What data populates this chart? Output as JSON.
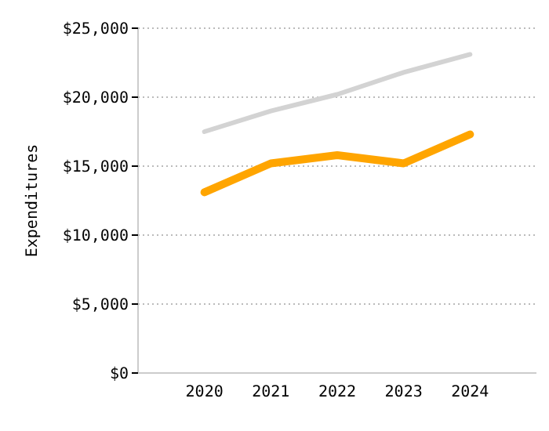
{
  "chart_data": {
    "type": "line",
    "ylabel": "Expenditures",
    "categories": [
      "2020",
      "2021",
      "2022",
      "2023",
      "2024"
    ],
    "series": [
      {
        "color": "#d3d3d3",
        "values": [
          17500,
          19000,
          20200,
          21800,
          23100
        ]
      },
      {
        "color": "#ffa500",
        "values": [
          13100,
          15200,
          15800,
          15200,
          17300
        ]
      }
    ],
    "ylim": [
      0,
      25000
    ],
    "yticks": [
      {
        "value": 0,
        "label": "$0"
      },
      {
        "value": 5000,
        "label": "$5,000"
      },
      {
        "value": 10000,
        "label": "$10,000"
      },
      {
        "value": 15000,
        "label": "$15,000"
      },
      {
        "value": 20000,
        "label": "$20,000"
      },
      {
        "value": 25000,
        "label": "$25,000"
      }
    ],
    "grid": "y",
    "marker": "none",
    "line_style": "solid"
  }
}
